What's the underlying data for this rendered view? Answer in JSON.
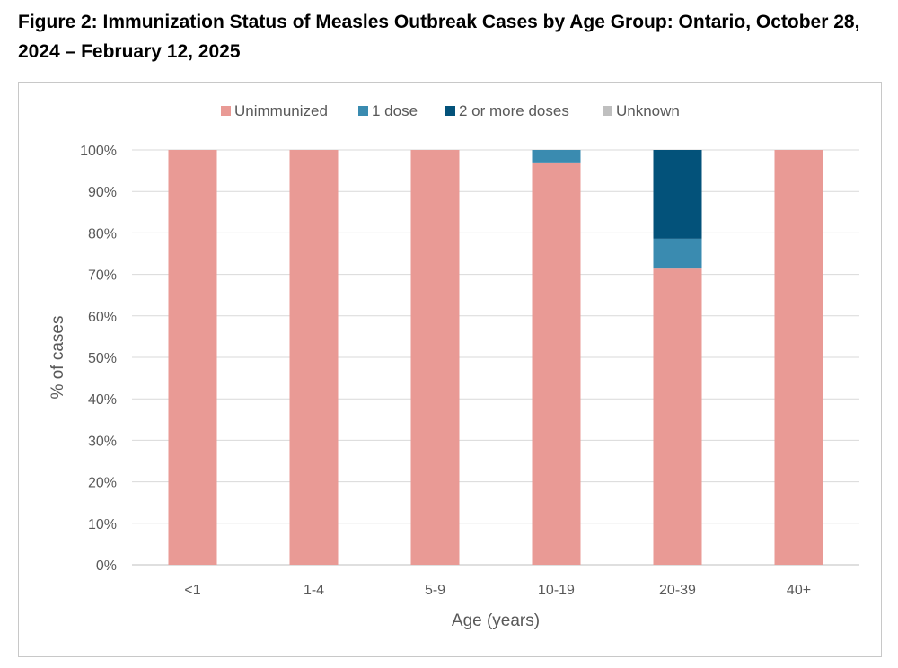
{
  "title": "Figure 2: Immunization Status of Measles Outbreak Cases by Age Group: Ontario, October 28, 2024 – February 12, 2025",
  "chart_data": {
    "type": "bar",
    "stacked": true,
    "title": "Figure 2: Immunization Status of Measles Outbreak Cases by Age Group: Ontario, October 28, 2024 – February 12, 2025",
    "xlabel": "Age (years)",
    "ylabel": "% of cases",
    "categories": [
      "<1",
      "1-4",
      "5-9",
      "10-19",
      "20-39",
      "40+"
    ],
    "ylim": [
      0,
      100
    ],
    "yticks": [
      "0%",
      "10%",
      "20%",
      "30%",
      "40%",
      "50%",
      "60%",
      "70%",
      "80%",
      "90%",
      "100%"
    ],
    "grid": true,
    "legend_position": "top",
    "series": [
      {
        "name": "Unimmunized",
        "color": "#e99a95",
        "values": [
          100,
          100,
          100,
          97,
          71.4,
          100
        ]
      },
      {
        "name": "1 dose",
        "color": "#3a8bb0",
        "values": [
          0,
          0,
          0,
          3,
          7.2,
          0
        ]
      },
      {
        "name": "2 or more doses",
        "color": "#03527a",
        "values": [
          0,
          0,
          0,
          0,
          21.4,
          0
        ]
      },
      {
        "name": "Unknown",
        "color": "#bfbfbf",
        "values": [
          0,
          0,
          0,
          0,
          0,
          0
        ]
      }
    ]
  }
}
